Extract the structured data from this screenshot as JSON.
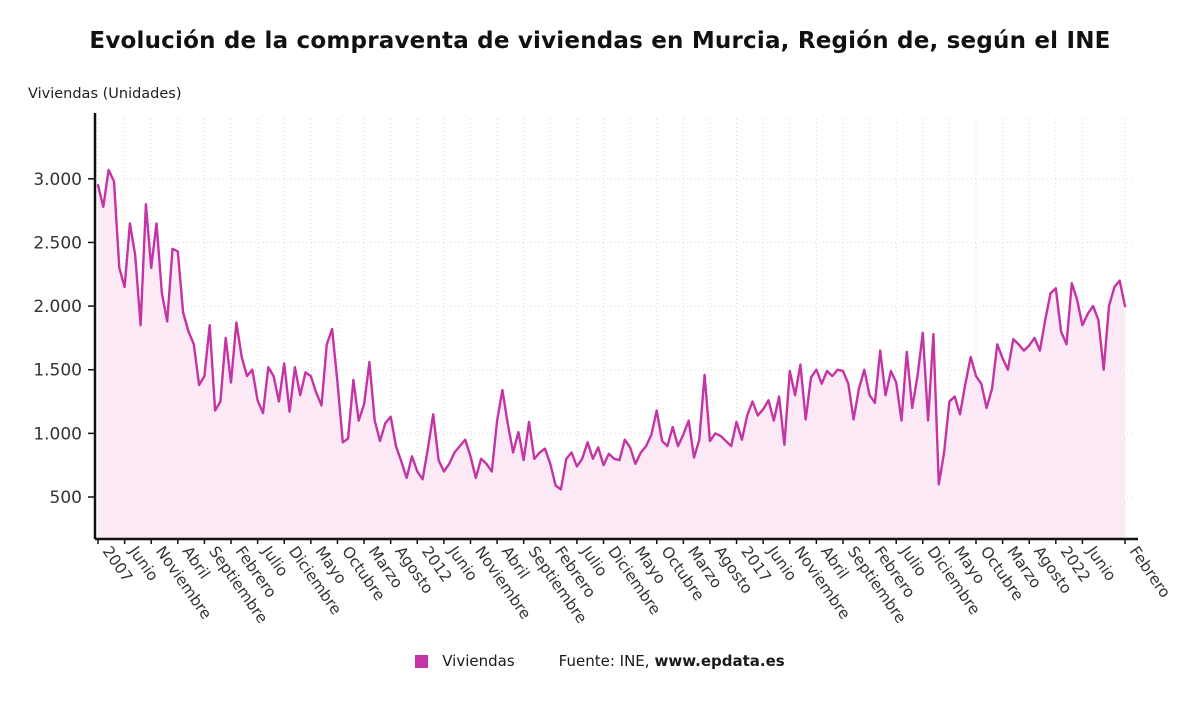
{
  "source": {
    "prefix": "Fuente: INE,",
    "link": "www.epdata.es"
  },
  "chart_data": {
    "type": "area",
    "title": "Evolución de la compraventa de viviendas en Murcia, Región de, según el INE",
    "ylabel": "Viviendas (Unidades)",
    "xlabel": "",
    "grid": true,
    "legend_position": "bottom",
    "ylim": [
      170,
      3470
    ],
    "colors": {
      "line": "#c434a4",
      "fill": "#fbe9f6",
      "grid": "#d8d8d8",
      "axis": "#111111",
      "tick_text": "#333333"
    },
    "y_ticks": [
      {
        "value": 500,
        "label": "500"
      },
      {
        "value": 1000,
        "label": "1.000"
      },
      {
        "value": 1500,
        "label": "1.500"
      },
      {
        "value": 2000,
        "label": "2.000"
      },
      {
        "value": 2500,
        "label": "2.500"
      },
      {
        "value": 3000,
        "label": "3.000"
      }
    ],
    "x_ticks": [
      {
        "index": 0,
        "label": "2007"
      },
      {
        "index": 5,
        "label": "Junio"
      },
      {
        "index": 10,
        "label": "Noviembre"
      },
      {
        "index": 15,
        "label": "Abril"
      },
      {
        "index": 20,
        "label": "Septiembre"
      },
      {
        "index": 25,
        "label": "Febrero"
      },
      {
        "index": 30,
        "label": "Julio"
      },
      {
        "index": 35,
        "label": "Diciembre"
      },
      {
        "index": 40,
        "label": "Mayo"
      },
      {
        "index": 45,
        "label": "Octubre"
      },
      {
        "index": 50,
        "label": "Marzo"
      },
      {
        "index": 55,
        "label": "Agosto"
      },
      {
        "index": 60,
        "label": "2012"
      },
      {
        "index": 65,
        "label": "Junio"
      },
      {
        "index": 70,
        "label": "Noviembre"
      },
      {
        "index": 75,
        "label": "Abril"
      },
      {
        "index": 80,
        "label": "Septiembre"
      },
      {
        "index": 85,
        "label": "Febrero"
      },
      {
        "index": 90,
        "label": "Julio"
      },
      {
        "index": 95,
        "label": "Diciembre"
      },
      {
        "index": 100,
        "label": "Mayo"
      },
      {
        "index": 105,
        "label": "Octubre"
      },
      {
        "index": 110,
        "label": "Marzo"
      },
      {
        "index": 115,
        "label": "Agosto"
      },
      {
        "index": 120,
        "label": "2017"
      },
      {
        "index": 125,
        "label": "Junio"
      },
      {
        "index": 130,
        "label": "Noviembre"
      },
      {
        "index": 135,
        "label": "Abril"
      },
      {
        "index": 140,
        "label": "Septiembre"
      },
      {
        "index": 145,
        "label": "Febrero"
      },
      {
        "index": 150,
        "label": "Julio"
      },
      {
        "index": 155,
        "label": "Diciembre"
      },
      {
        "index": 160,
        "label": "Mayo"
      },
      {
        "index": 165,
        "label": "Octubre"
      },
      {
        "index": 170,
        "label": "Marzo"
      },
      {
        "index": 175,
        "label": "Agosto"
      },
      {
        "index": 180,
        "label": "2022"
      },
      {
        "index": 185,
        "label": "Junio"
      },
      {
        "index": 193,
        "label": "Febrero"
      }
    ],
    "series": [
      {
        "name": "Viviendas",
        "values": [
          2950,
          2780,
          3070,
          2980,
          2300,
          2150,
          2650,
          2400,
          1850,
          2800,
          2300,
          2650,
          2100,
          1880,
          2450,
          2430,
          1950,
          1800,
          1700,
          1380,
          1450,
          1850,
          1180,
          1250,
          1750,
          1400,
          1870,
          1600,
          1450,
          1500,
          1260,
          1160,
          1520,
          1450,
          1250,
          1550,
          1170,
          1520,
          1300,
          1480,
          1450,
          1320,
          1220,
          1700,
          1820,
          1400,
          930,
          960,
          1420,
          1100,
          1230,
          1560,
          1100,
          940,
          1080,
          1130,
          900,
          780,
          650,
          820,
          700,
          640,
          880,
          1150,
          790,
          700,
          760,
          850,
          900,
          950,
          820,
          650,
          800,
          760,
          700,
          1100,
          1340,
          1080,
          850,
          1010,
          790,
          1090,
          800,
          850,
          880,
          760,
          590,
          560,
          800,
          850,
          740,
          800,
          930,
          800,
          890,
          750,
          840,
          800,
          790,
          950,
          890,
          760,
          850,
          900,
          990,
          1180,
          940,
          900,
          1050,
          900,
          990,
          1100,
          810,
          950,
          1460,
          940,
          1000,
          980,
          940,
          900,
          1090,
          950,
          1140,
          1250,
          1140,
          1190,
          1260,
          1100,
          1290,
          910,
          1490,
          1300,
          1540,
          1110,
          1440,
          1500,
          1390,
          1490,
          1450,
          1500,
          1490,
          1390,
          1110,
          1350,
          1500,
          1300,
          1240,
          1650,
          1300,
          1490,
          1400,
          1100,
          1640,
          1200,
          1450,
          1790,
          1100,
          1780,
          600,
          850,
          1250,
          1290,
          1150,
          1390,
          1600,
          1450,
          1390,
          1200,
          1350,
          1700,
          1590,
          1500,
          1740,
          1700,
          1650,
          1690,
          1750,
          1650,
          1890,
          2100,
          2140,
          1800,
          1700,
          2180,
          2050,
          1850,
          1940,
          2000,
          1890,
          1500,
          2000,
          2150,
          2200,
          2000
        ]
      }
    ]
  }
}
